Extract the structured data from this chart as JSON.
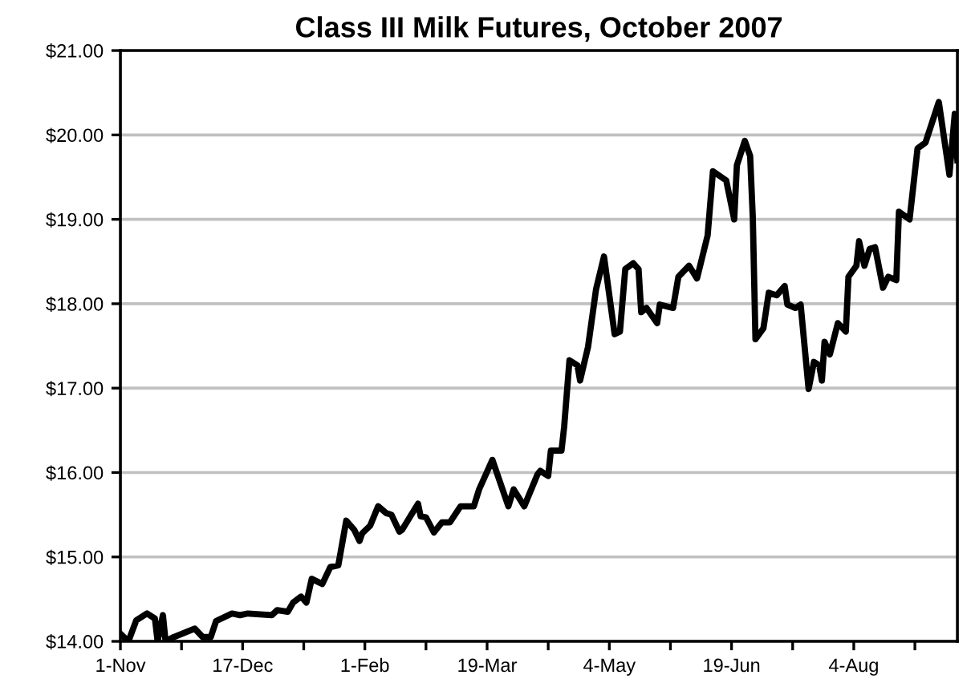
{
  "chart_data": {
    "type": "line",
    "title": "Class III Milk Futures, October 2007",
    "x": [
      "2006-11-01",
      "2006-11-04",
      "2006-11-07",
      "2006-11-11",
      "2006-11-14",
      "2006-11-15",
      "2006-11-17",
      "2006-11-18",
      "2006-11-21",
      "2006-11-29",
      "2006-12-02",
      "2006-12-05",
      "2006-12-07",
      "2006-12-13",
      "2006-12-16",
      "2006-12-19",
      "2006-12-28",
      "2006-12-30",
      "2007-01-03",
      "2007-01-05",
      "2007-01-08",
      "2007-01-10",
      "2007-01-12",
      "2007-01-16",
      "2007-01-19",
      "2007-01-22",
      "2007-01-25",
      "2007-01-28",
      "2007-01-30",
      "2007-01-31",
      "2007-02-03",
      "2007-02-06",
      "2007-02-09",
      "2007-02-11",
      "2007-02-14",
      "2007-02-15",
      "2007-02-21",
      "2007-02-22",
      "2007-02-24",
      "2007-02-27",
      "2007-03-02",
      "2007-03-05",
      "2007-03-09",
      "2007-03-14",
      "2007-03-16",
      "2007-03-21",
      "2007-03-27",
      "2007-03-29",
      "2007-04-02",
      "2007-04-07",
      "2007-04-08",
      "2007-04-11",
      "2007-04-12",
      "2007-04-16",
      "2007-04-17",
      "2007-04-19",
      "2007-04-22",
      "2007-04-23",
      "2007-04-26",
      "2007-04-29",
      "2007-05-02",
      "2007-05-06",
      "2007-05-08",
      "2007-05-10",
      "2007-05-13",
      "2007-05-15",
      "2007-05-16",
      "2007-05-18",
      "2007-05-22",
      "2007-05-23",
      "2007-05-28",
      "2007-05-30",
      "2007-06-03",
      "2007-06-06",
      "2007-06-10",
      "2007-06-12",
      "2007-06-17",
      "2007-06-20",
      "2007-06-21",
      "2007-06-24",
      "2007-06-26",
      "2007-06-27",
      "2007-06-28",
      "2007-07-01",
      "2007-07-03",
      "2007-07-06",
      "2007-07-09",
      "2007-07-10",
      "2007-07-13",
      "2007-07-15",
      "2007-07-18",
      "2007-07-20",
      "2007-07-22",
      "2007-07-23",
      "2007-07-24",
      "2007-07-26",
      "2007-07-29",
      "2007-08-01",
      "2007-08-02",
      "2007-08-05",
      "2007-08-06",
      "2007-08-08",
      "2007-08-10",
      "2007-08-12",
      "2007-08-15",
      "2007-08-17",
      "2007-08-20",
      "2007-08-21",
      "2007-08-25",
      "2007-08-28",
      "2007-08-31",
      "2007-09-05",
      "2007-09-09",
      "2007-09-11",
      "2007-09-12"
    ],
    "series": [
      {
        "color": "#000000",
        "values": [
          14.09,
          14.0,
          14.25,
          14.33,
          14.27,
          14.0,
          14.31,
          14.0,
          14.05,
          14.15,
          14.05,
          14.05,
          14.24,
          14.33,
          14.31,
          14.33,
          14.31,
          14.37,
          14.35,
          14.46,
          14.53,
          14.46,
          14.74,
          14.68,
          14.88,
          14.9,
          15.43,
          15.32,
          15.19,
          15.28,
          15.37,
          15.6,
          15.52,
          15.5,
          15.3,
          15.32,
          15.63,
          15.48,
          15.47,
          15.29,
          15.41,
          15.41,
          15.6,
          15.6,
          15.8,
          16.15,
          15.6,
          15.8,
          15.6,
          15.98,
          16.02,
          15.96,
          16.26,
          16.26,
          16.54,
          17.33,
          17.27,
          17.09,
          17.49,
          18.17,
          18.56,
          17.64,
          17.67,
          18.41,
          18.48,
          18.41,
          17.9,
          17.95,
          17.77,
          17.99,
          17.95,
          18.32,
          18.45,
          18.3,
          18.81,
          19.57,
          19.46,
          19.0,
          19.64,
          19.93,
          19.75,
          19.02,
          17.58,
          17.71,
          18.13,
          18.1,
          18.21,
          17.99,
          17.95,
          17.99,
          16.99,
          17.31,
          17.27,
          17.09,
          17.55,
          17.4,
          17.77,
          17.67,
          18.32,
          18.45,
          18.74,
          18.45,
          18.65,
          18.67,
          18.19,
          18.32,
          18.28,
          19.09,
          19.0,
          19.84,
          19.91,
          20.39,
          19.53,
          20.25,
          19.7
        ]
      }
    ],
    "xlim": [
      "2006-11-01",
      "2007-09-12"
    ],
    "xticks": [
      {
        "value": "2006-11-01",
        "label": "1-Nov"
      },
      {
        "value": "2006-11-24",
        "label": null
      },
      {
        "value": "2006-12-17",
        "label": "17-Dec"
      },
      {
        "value": "2007-01-09",
        "label": null
      },
      {
        "value": "2007-02-01",
        "label": "1-Feb"
      },
      {
        "value": "2007-02-24",
        "label": null
      },
      {
        "value": "2007-03-19",
        "label": "19-Mar"
      },
      {
        "value": "2007-04-11",
        "label": null
      },
      {
        "value": "2007-05-04",
        "label": "4-May"
      },
      {
        "value": "2007-05-27",
        "label": null
      },
      {
        "value": "2007-06-19",
        "label": "19-Jun"
      },
      {
        "value": "2007-07-12",
        "label": null
      },
      {
        "value": "2007-08-04",
        "label": "4-Aug"
      },
      {
        "value": "2007-08-27",
        "label": null
      }
    ],
    "ylim": [
      14,
      21
    ],
    "yticks": [
      {
        "value": 14,
        "label": "$14.00"
      },
      {
        "value": 15,
        "label": "$15.00"
      },
      {
        "value": 16,
        "label": "$16.00"
      },
      {
        "value": 17,
        "label": "$17.00"
      },
      {
        "value": 18,
        "label": "$18.00"
      },
      {
        "value": 19,
        "label": "$19.00"
      },
      {
        "value": 20,
        "label": "$20.00"
      },
      {
        "value": 21,
        "label": "$21.00"
      }
    ],
    "grid": "y",
    "marker": "none",
    "line_style": "solid",
    "legend": false
  }
}
